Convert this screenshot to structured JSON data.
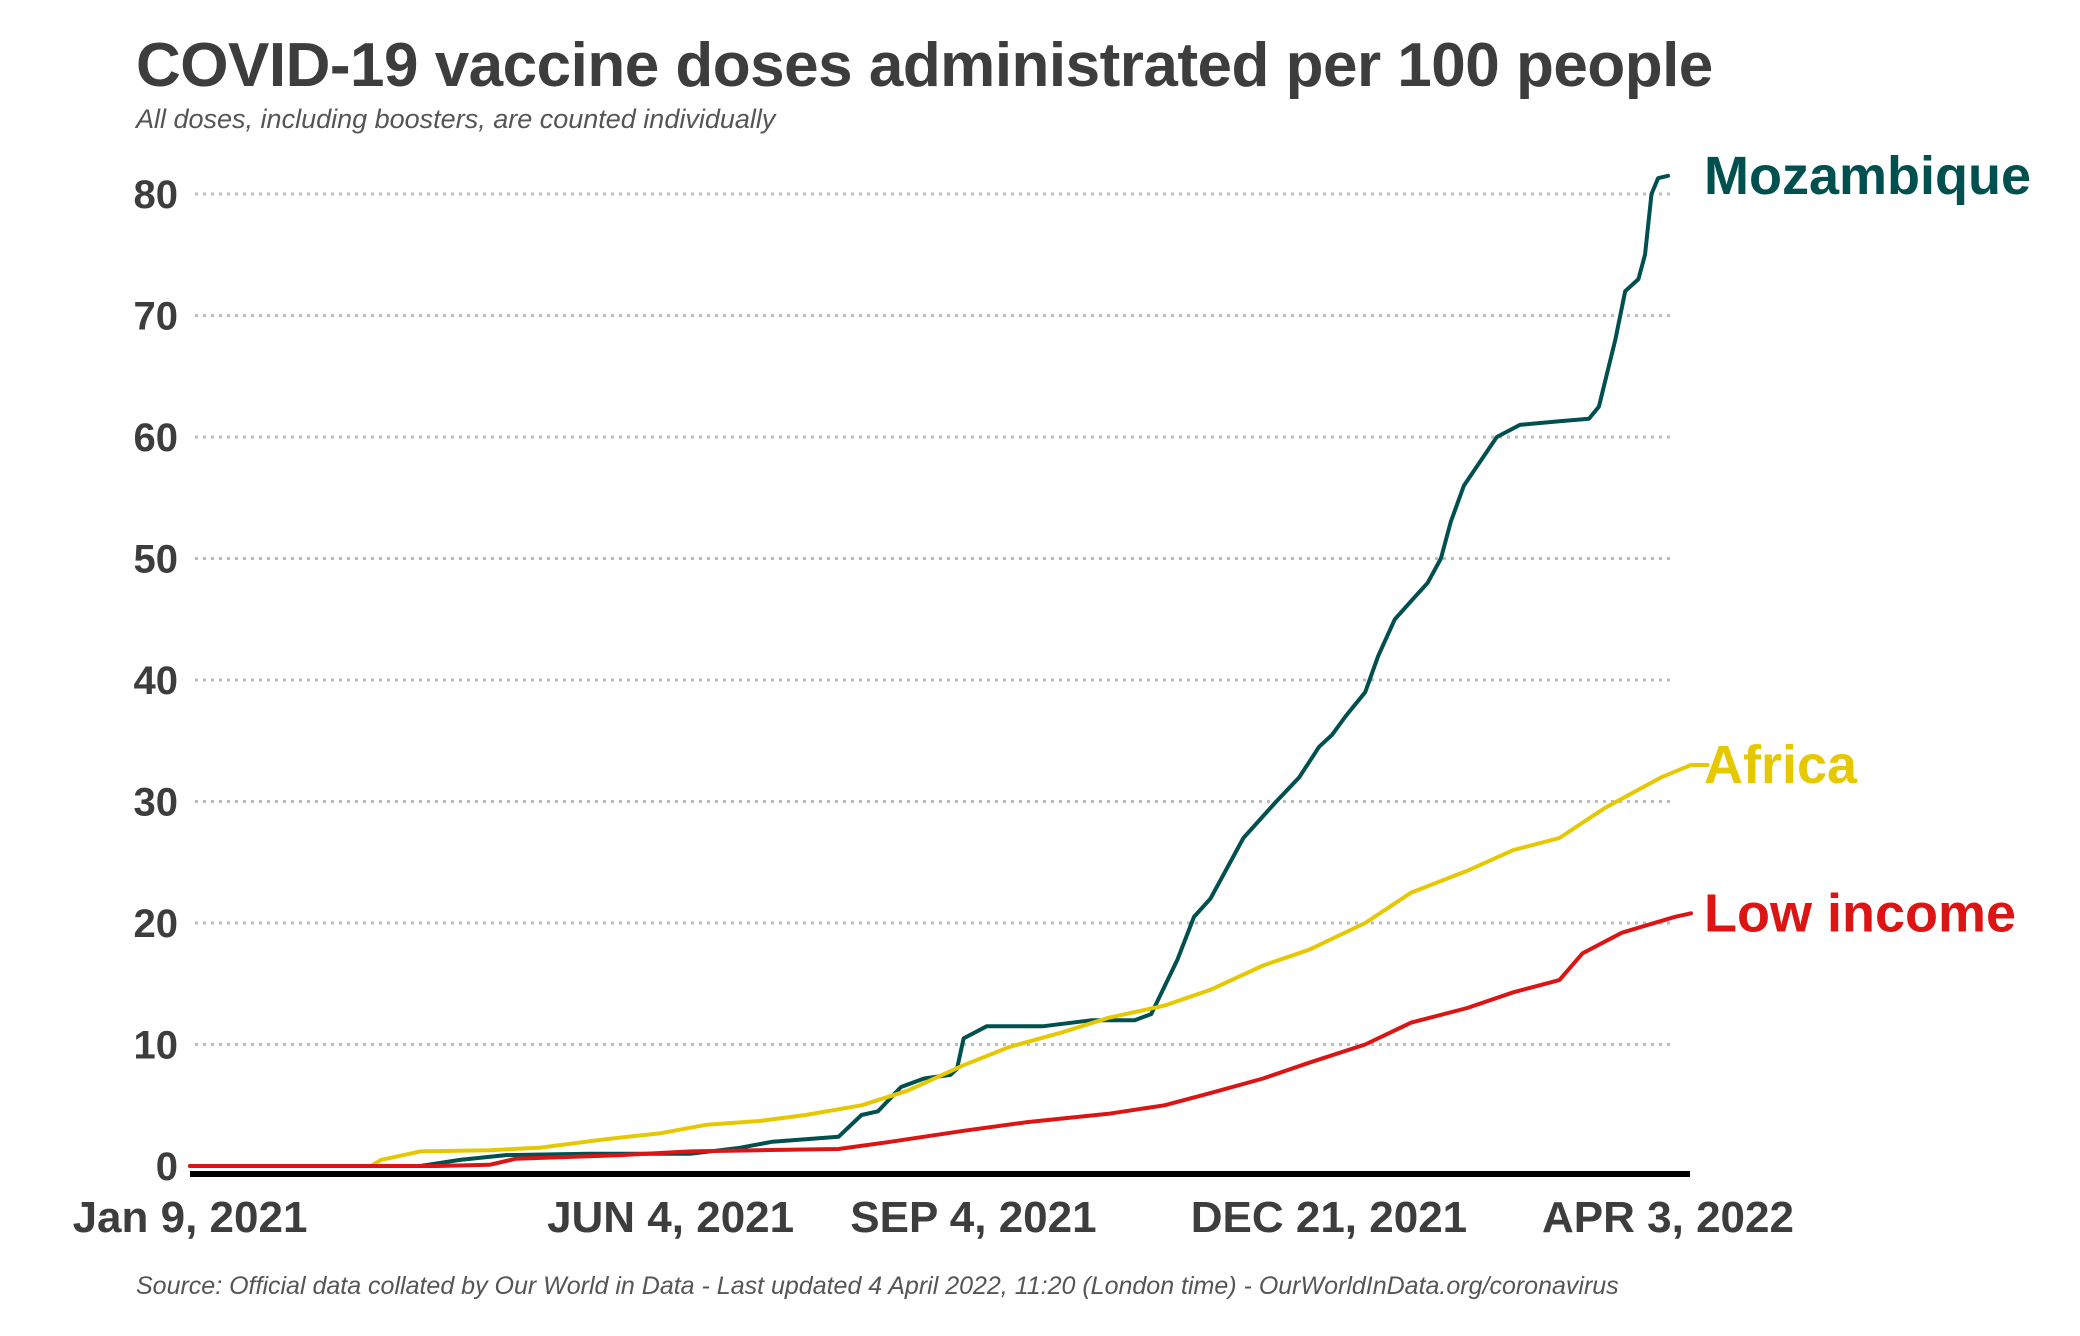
{
  "title": "COVID-19 vaccine doses administrated per 100 people",
  "subtitle": "All doses, including boosters, are counted individually",
  "source": "Source: Official data collated by Our World in Data - Last updated 4 April 2022, 11:20 (London time) - OurWorldInData.org/coronavirus",
  "chart_data": {
    "type": "line",
    "title": "COVID-19 vaccine doses administrated per 100 people",
    "xlabel": "",
    "ylabel": "",
    "x_range": [
      "2021-01-09",
      "2022-04-03"
    ],
    "ylim": [
      0,
      80
    ],
    "y_ticks": [
      0,
      10,
      20,
      30,
      40,
      50,
      60,
      70,
      80
    ],
    "x_ticks": [
      {
        "date": "2021-01-09",
        "label": "Jan 9, 2021"
      },
      {
        "date": "2021-06-04",
        "label": "JUN 4, 2021"
      },
      {
        "date": "2021-09-04",
        "label": "SEP 4, 2021"
      },
      {
        "date": "2021-12-21",
        "label": "DEC 21, 2021"
      },
      {
        "date": "2022-04-03",
        "label": "APR 3, 2022"
      }
    ],
    "grid": "horizontal-dotted",
    "series": [
      {
        "name": "Mozambique",
        "color": "#00504f",
        "points": [
          [
            "2021-01-09",
            0
          ],
          [
            "2021-02-20",
            0
          ],
          [
            "2021-03-20",
            0
          ],
          [
            "2021-04-01",
            0.5
          ],
          [
            "2021-04-15",
            0.9
          ],
          [
            "2021-05-10",
            1.0
          ],
          [
            "2021-06-10",
            1.0
          ],
          [
            "2021-06-25",
            1.5
          ],
          [
            "2021-07-05",
            2.0
          ],
          [
            "2021-07-15",
            2.2
          ],
          [
            "2021-07-25",
            2.4
          ],
          [
            "2021-08-01",
            4.2
          ],
          [
            "2021-08-06",
            4.5
          ],
          [
            "2021-08-13",
            6.5
          ],
          [
            "2021-08-20",
            7.2
          ],
          [
            "2021-08-28",
            7.5
          ],
          [
            "2021-08-30",
            8.0
          ],
          [
            "2021-09-01",
            10.5
          ],
          [
            "2021-09-08",
            11.5
          ],
          [
            "2021-09-25",
            11.5
          ],
          [
            "2021-10-10",
            12.0
          ],
          [
            "2021-10-23",
            12.0
          ],
          [
            "2021-10-28",
            12.5
          ],
          [
            "2021-11-05",
            17.0
          ],
          [
            "2021-11-10",
            20.5
          ],
          [
            "2021-11-15",
            22.0
          ],
          [
            "2021-11-25",
            27.0
          ],
          [
            "2021-12-05",
            30.0
          ],
          [
            "2021-12-12",
            32.0
          ],
          [
            "2021-12-18",
            34.5
          ],
          [
            "2021-12-22",
            35.5
          ],
          [
            "2021-12-26",
            37.0
          ],
          [
            "2022-01-01",
            39.0
          ],
          [
            "2022-01-05",
            42.0
          ],
          [
            "2022-01-10",
            45.0
          ],
          [
            "2022-01-15",
            46.5
          ],
          [
            "2022-01-20",
            48.0
          ],
          [
            "2022-01-24",
            50.0
          ],
          [
            "2022-01-27",
            53.0
          ],
          [
            "2022-01-31",
            56.0
          ],
          [
            "2022-02-05",
            58.0
          ],
          [
            "2022-02-10",
            60.0
          ],
          [
            "2022-02-17",
            61.0
          ],
          [
            "2022-03-01",
            61.3
          ],
          [
            "2022-03-10",
            61.5
          ],
          [
            "2022-03-13",
            62.5
          ],
          [
            "2022-03-18",
            68.0
          ],
          [
            "2022-03-21",
            72.0
          ],
          [
            "2022-03-25",
            73.0
          ],
          [
            "2022-03-27",
            75.0
          ],
          [
            "2022-03-29",
            80.0
          ],
          [
            "2022-03-31",
            81.3
          ],
          [
            "2022-04-03",
            81.5
          ]
        ]
      },
      {
        "name": "Africa",
        "color": "#e6c800",
        "points": [
          [
            "2021-01-09",
            0
          ],
          [
            "2021-03-05",
            0
          ],
          [
            "2021-03-08",
            0.5
          ],
          [
            "2021-03-20",
            1.2
          ],
          [
            "2021-04-10",
            1.3
          ],
          [
            "2021-04-25",
            1.5
          ],
          [
            "2021-05-15",
            2.2
          ],
          [
            "2021-06-01",
            2.7
          ],
          [
            "2021-06-15",
            3.4
          ],
          [
            "2021-07-01",
            3.7
          ],
          [
            "2021-07-15",
            4.2
          ],
          [
            "2021-08-01",
            5.0
          ],
          [
            "2021-08-15",
            6.2
          ],
          [
            "2021-09-01",
            8.3
          ],
          [
            "2021-09-15",
            9.8
          ],
          [
            "2021-10-01",
            11.0
          ],
          [
            "2021-10-15",
            12.2
          ],
          [
            "2021-11-01",
            13.2
          ],
          [
            "2021-11-15",
            14.5
          ],
          [
            "2021-12-01",
            16.5
          ],
          [
            "2021-12-15",
            17.8
          ],
          [
            "2022-01-01",
            20.0
          ],
          [
            "2022-01-15",
            22.5
          ],
          [
            "2022-02-01",
            24.3
          ],
          [
            "2022-02-15",
            26.0
          ],
          [
            "2022-03-01",
            27.0
          ],
          [
            "2022-03-15",
            29.5
          ],
          [
            "2022-04-01",
            32.0
          ],
          [
            "2022-04-10",
            33.0
          ],
          [
            "2022-04-15",
            33.0
          ]
        ]
      },
      {
        "name": "Low income",
        "color": "#dc1414",
        "points": [
          [
            "2021-01-09",
            0
          ],
          [
            "2021-03-25",
            0
          ],
          [
            "2021-04-10",
            0.1
          ],
          [
            "2021-04-18",
            0.6
          ],
          [
            "2021-05-20",
            0.9
          ],
          [
            "2021-06-10",
            1.2
          ],
          [
            "2021-07-01",
            1.3
          ],
          [
            "2021-07-25",
            1.4
          ],
          [
            "2021-08-10",
            2.0
          ],
          [
            "2021-09-01",
            2.9
          ],
          [
            "2021-09-20",
            3.6
          ],
          [
            "2021-10-15",
            4.3
          ],
          [
            "2021-11-01",
            5.0
          ],
          [
            "2021-11-15",
            6.0
          ],
          [
            "2021-12-01",
            7.2
          ],
          [
            "2021-12-15",
            8.5
          ],
          [
            "2022-01-01",
            10.0
          ],
          [
            "2022-01-15",
            11.8
          ],
          [
            "2022-02-01",
            13.0
          ],
          [
            "2022-02-15",
            14.3
          ],
          [
            "2022-03-01",
            15.3
          ],
          [
            "2022-03-08",
            17.5
          ],
          [
            "2022-03-20",
            19.2
          ],
          [
            "2022-04-05",
            20.5
          ],
          [
            "2022-04-10",
            20.8
          ]
        ]
      }
    ]
  }
}
